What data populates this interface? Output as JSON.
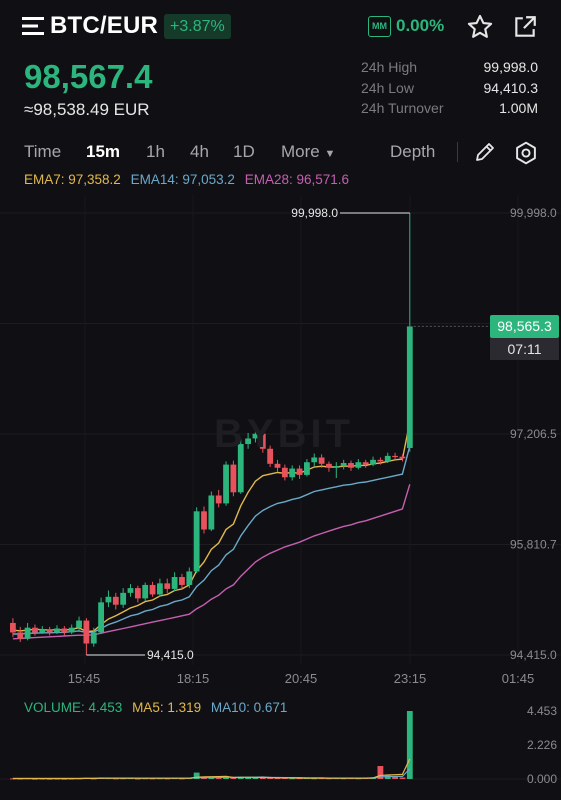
{
  "header": {
    "pair": "BTC/EUR",
    "change": "+3.87%",
    "mm_label": "MM",
    "mm_value": "0.00%"
  },
  "price": {
    "last": "98,567.4",
    "fiat": "≈98,538.49 EUR"
  },
  "stats": [
    {
      "label": "24h High",
      "value": "99,998.0"
    },
    {
      "label": "24h Low",
      "value": "94,410.3"
    },
    {
      "label": "24h Turnover",
      "value": "1.00M"
    }
  ],
  "tabs": {
    "time": "Time",
    "m15": "15m",
    "h1": "1h",
    "h4": "4h",
    "d1": "1D",
    "more": "More",
    "depth": "Depth"
  },
  "ema": {
    "ema7": "EMA7: 97,358.2",
    "ema14": "EMA14: 97,053.2",
    "ema28": "EMA28: 96,571.6"
  },
  "chart_labels": {
    "high_marker": "99,998.0",
    "low_marker": "94,415.0",
    "y_ticks": [
      "99,998.0",
      "97,206.5",
      "95,810.7",
      "94,415.0"
    ],
    "x_ticks": [
      "15:45",
      "18:15",
      "20:45",
      "23:15",
      "01:45"
    ],
    "current_price": "98,565.3",
    "countdown": "07:11",
    "watermark": "BYBIT"
  },
  "volume": {
    "vol": "VOLUME: 4.453",
    "ma5": "MA5: 1.319",
    "ma10": "MA10: 0.671",
    "y_ticks": [
      "4.453",
      "2.226",
      "0.000"
    ]
  },
  "colors": {
    "up": "#2cb67d",
    "down": "#e8525c",
    "ema7": "#e2b84c",
    "ema14": "#6aa9c9",
    "ema28": "#c65fb0",
    "background": "#101014"
  },
  "chart_data": {
    "type": "candlestick",
    "interval": "15m",
    "ylim": [
      94415.0,
      99998.0
    ],
    "x_ticks": [
      "15:45",
      "18:15",
      "20:45",
      "23:15",
      "01:45"
    ],
    "candles": [
      {
        "o": 94820,
        "c": 94700,
        "h": 94880,
        "l": 94640
      },
      {
        "o": 94700,
        "c": 94620,
        "h": 94770,
        "l": 94580
      },
      {
        "o": 94620,
        "c": 94760,
        "h": 94820,
        "l": 94600
      },
      {
        "o": 94760,
        "c": 94700,
        "h": 94800,
        "l": 94660
      },
      {
        "o": 94700,
        "c": 94740,
        "h": 94780,
        "l": 94680
      },
      {
        "o": 94740,
        "c": 94700,
        "h": 94770,
        "l": 94660
      },
      {
        "o": 94700,
        "c": 94750,
        "h": 94790,
        "l": 94680
      },
      {
        "o": 94750,
        "c": 94700,
        "h": 94780,
        "l": 94660
      },
      {
        "o": 94700,
        "c": 94760,
        "h": 94800,
        "l": 94680
      },
      {
        "o": 94760,
        "c": 94850,
        "h": 94900,
        "l": 94720
      },
      {
        "o": 94850,
        "c": 94560,
        "h": 94880,
        "l": 94415
      },
      {
        "o": 94560,
        "c": 94700,
        "h": 94760,
        "l": 94520
      },
      {
        "o": 94700,
        "c": 95080,
        "h": 95140,
        "l": 94680
      },
      {
        "o": 95080,
        "c": 95150,
        "h": 95230,
        "l": 95020
      },
      {
        "o": 95150,
        "c": 95050,
        "h": 95200,
        "l": 94990
      },
      {
        "o": 95050,
        "c": 95200,
        "h": 95260,
        "l": 95010
      },
      {
        "o": 95200,
        "c": 95260,
        "h": 95310,
        "l": 95150
      },
      {
        "o": 95260,
        "c": 95130,
        "h": 95290,
        "l": 95080
      },
      {
        "o": 95130,
        "c": 95300,
        "h": 95330,
        "l": 95100
      },
      {
        "o": 95300,
        "c": 95180,
        "h": 95340,
        "l": 95150
      },
      {
        "o": 95180,
        "c": 95320,
        "h": 95380,
        "l": 95150
      },
      {
        "o": 95320,
        "c": 95250,
        "h": 95380,
        "l": 95200
      },
      {
        "o": 95250,
        "c": 95400,
        "h": 95460,
        "l": 95220
      },
      {
        "o": 95400,
        "c": 95300,
        "h": 95440,
        "l": 95250
      },
      {
        "o": 95300,
        "c": 95470,
        "h": 95520,
        "l": 95260
      },
      {
        "o": 95470,
        "c": 96230,
        "h": 96280,
        "l": 95450
      },
      {
        "o": 96230,
        "c": 96000,
        "h": 96290,
        "l": 95950
      },
      {
        "o": 96000,
        "c": 96430,
        "h": 96480,
        "l": 95980
      },
      {
        "o": 96430,
        "c": 96330,
        "h": 96500,
        "l": 96280
      },
      {
        "o": 96330,
        "c": 96820,
        "h": 96860,
        "l": 96300
      },
      {
        "o": 96820,
        "c": 96470,
        "h": 96870,
        "l": 96420
      },
      {
        "o": 96470,
        "c": 97080,
        "h": 97140,
        "l": 96450
      },
      {
        "o": 97080,
        "c": 97150,
        "h": 97220,
        "l": 97020
      },
      {
        "o": 97150,
        "c": 97210,
        "h": 97260,
        "l": 97100
      },
      {
        "o": 97210,
        "c": 97020,
        "h": 97230,
        "l": 96970
      },
      {
        "o": 97020,
        "c": 96830,
        "h": 97060,
        "l": 96790
      },
      {
        "o": 96830,
        "c": 96780,
        "h": 96880,
        "l": 96730
      },
      {
        "o": 96780,
        "c": 96660,
        "h": 96820,
        "l": 96620
      },
      {
        "o": 96660,
        "c": 96770,
        "h": 96810,
        "l": 96620
      },
      {
        "o": 96770,
        "c": 96690,
        "h": 96810,
        "l": 96640
      },
      {
        "o": 96690,
        "c": 96850,
        "h": 96890,
        "l": 96670
      },
      {
        "o": 96850,
        "c": 96910,
        "h": 96960,
        "l": 96800
      },
      {
        "o": 96910,
        "c": 96830,
        "h": 96950,
        "l": 96780
      },
      {
        "o": 96830,
        "c": 96780,
        "h": 96860,
        "l": 96730
      },
      {
        "o": 96780,
        "c": 96800,
        "h": 96850,
        "l": 96650
      },
      {
        "o": 96800,
        "c": 96840,
        "h": 96880,
        "l": 96760
      },
      {
        "o": 96840,
        "c": 96780,
        "h": 96870,
        "l": 96740
      },
      {
        "o": 96780,
        "c": 96850,
        "h": 96890,
        "l": 96760
      },
      {
        "o": 96850,
        "c": 96820,
        "h": 96880,
        "l": 96780
      },
      {
        "o": 96820,
        "c": 96880,
        "h": 96920,
        "l": 96800
      },
      {
        "o": 96880,
        "c": 96860,
        "h": 96910,
        "l": 96820
      },
      {
        "o": 96860,
        "c": 96930,
        "h": 96970,
        "l": 96840
      },
      {
        "o": 96930,
        "c": 96920,
        "h": 96970,
        "l": 96880
      },
      {
        "o": 96920,
        "c": 96900,
        "h": 96950,
        "l": 96860
      },
      {
        "o": 97030,
        "c": 98565.3,
        "h": 99998.0,
        "l": 96980
      }
    ],
    "ema7": [
      94730,
      94720,
      94730,
      94740,
      94735,
      94730,
      94735,
      94730,
      94740,
      94760,
      94710,
      94720,
      94800,
      94870,
      94910,
      94960,
      95010,
      95040,
      95090,
      95110,
      95160,
      95180,
      95230,
      95250,
      95300,
      95480,
      95590,
      95750,
      95830,
      96000,
      96070,
      96300,
      96470,
      96610,
      96680,
      96700,
      96720,
      96710,
      96720,
      96710,
      96750,
      96790,
      96800,
      96790,
      96790,
      96800,
      96800,
      96810,
      96810,
      96830,
      96840,
      96860,
      96880,
      96890,
      97358.2
    ],
    "ema14": [
      94680,
      94680,
      94690,
      94690,
      94695,
      94695,
      94700,
      94700,
      94710,
      94720,
      94700,
      94705,
      94750,
      94800,
      94830,
      94870,
      94910,
      94930,
      94970,
      94990,
      95030,
      95050,
      95090,
      95110,
      95150,
      95280,
      95360,
      95480,
      95550,
      95680,
      95750,
      95920,
      96050,
      96170,
      96240,
      96290,
      96330,
      96350,
      96380,
      96400,
      96440,
      96480,
      96500,
      96520,
      96540,
      96560,
      96570,
      96590,
      96600,
      96620,
      96640,
      96660,
      96680,
      96700,
      97053.2
    ],
    "ema28": [
      94620,
      94625,
      94630,
      94635,
      94640,
      94645,
      94650,
      94655,
      94660,
      94665,
      94665,
      94670,
      94690,
      94710,
      94730,
      94750,
      94770,
      94790,
      94810,
      94830,
      94850,
      94870,
      94890,
      94910,
      94930,
      95000,
      95050,
      95120,
      95170,
      95250,
      95300,
      95410,
      95500,
      95590,
      95650,
      95700,
      95740,
      95780,
      95810,
      95840,
      95880,
      95920,
      95950,
      95980,
      96010,
      96040,
      96060,
      96090,
      96110,
      96140,
      96170,
      96200,
      96230,
      96260,
      96571.6
    ],
    "volume": [
      0.04,
      0.03,
      0.05,
      0.02,
      0.03,
      0.02,
      0.03,
      0.02,
      0.03,
      0.05,
      0.08,
      0.04,
      0.1,
      0.06,
      0.04,
      0.05,
      0.06,
      0.03,
      0.05,
      0.04,
      0.05,
      0.04,
      0.06,
      0.04,
      0.07,
      0.42,
      0.1,
      0.12,
      0.06,
      0.15,
      0.08,
      0.14,
      0.1,
      0.09,
      0.07,
      0.08,
      0.06,
      0.07,
      0.05,
      0.06,
      0.07,
      0.05,
      0.06,
      0.05,
      0.06,
      0.05,
      0.06,
      0.05,
      0.08,
      0.1,
      0.85,
      0.22,
      0.14,
      0.1,
      4.453
    ],
    "ma5": [
      0.03,
      0.03,
      0.03,
      0.03,
      0.03,
      0.03,
      0.03,
      0.03,
      0.03,
      0.03,
      0.04,
      0.04,
      0.06,
      0.06,
      0.06,
      0.06,
      0.06,
      0.05,
      0.05,
      0.05,
      0.05,
      0.05,
      0.05,
      0.05,
      0.05,
      0.12,
      0.14,
      0.15,
      0.16,
      0.17,
      0.1,
      0.11,
      0.11,
      0.11,
      0.1,
      0.1,
      0.08,
      0.08,
      0.07,
      0.06,
      0.06,
      0.06,
      0.06,
      0.06,
      0.06,
      0.06,
      0.06,
      0.05,
      0.06,
      0.07,
      0.23,
      0.26,
      0.28,
      0.3,
      1.319
    ],
    "ma10": [
      0.03,
      0.03,
      0.03,
      0.03,
      0.03,
      0.03,
      0.03,
      0.03,
      0.03,
      0.03,
      0.04,
      0.04,
      0.04,
      0.05,
      0.05,
      0.05,
      0.05,
      0.05,
      0.05,
      0.05,
      0.05,
      0.05,
      0.05,
      0.05,
      0.05,
      0.09,
      0.09,
      0.1,
      0.1,
      0.11,
      0.11,
      0.12,
      0.12,
      0.12,
      0.13,
      0.1,
      0.1,
      0.09,
      0.09,
      0.09,
      0.08,
      0.07,
      0.07,
      0.06,
      0.06,
      0.06,
      0.06,
      0.06,
      0.06,
      0.06,
      0.14,
      0.16,
      0.17,
      0.17,
      0.671
    ],
    "vol_ylim": [
      0,
      4.453
    ]
  }
}
